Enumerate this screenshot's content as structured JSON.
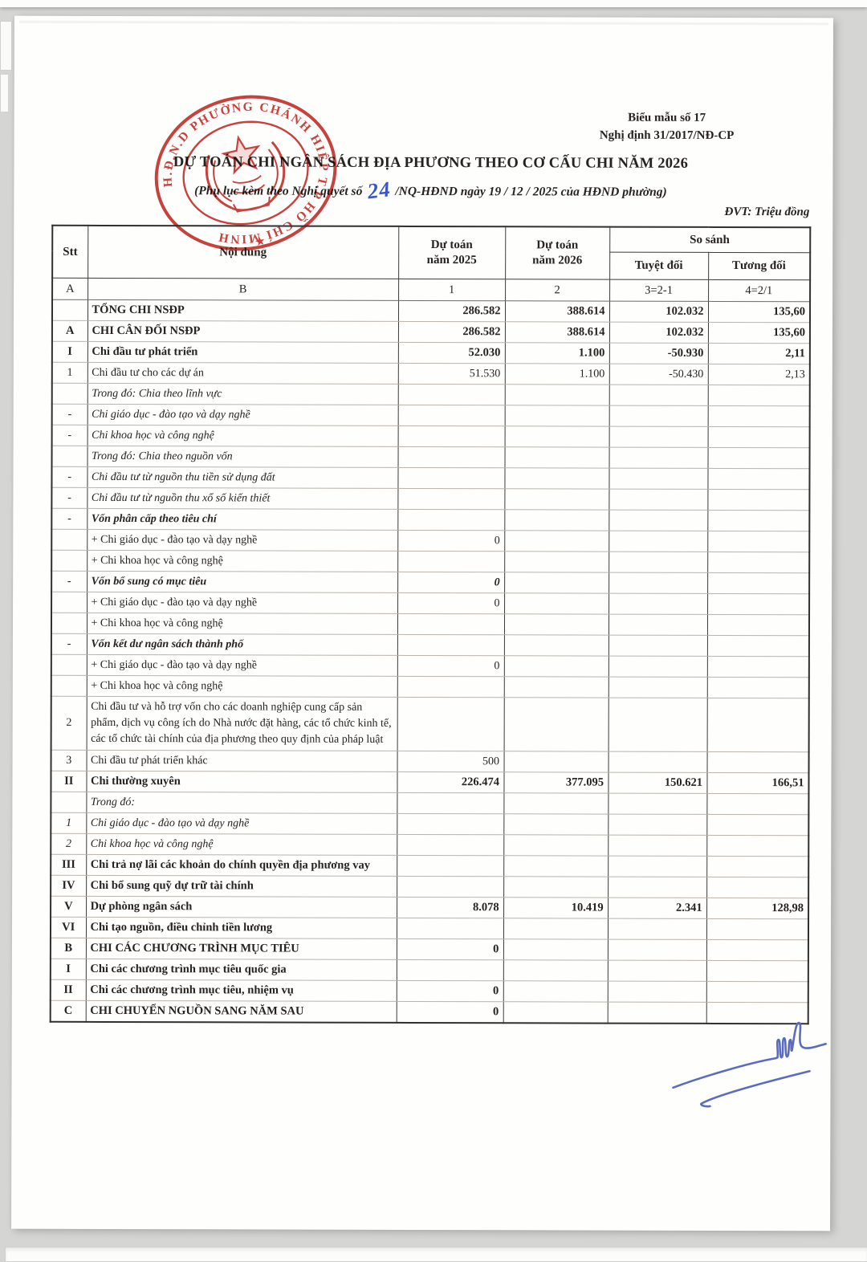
{
  "page": {
    "form_label": "Biểu mẫu số 17",
    "decree": "Nghị định 31/2017/NĐ-CP",
    "title": "DỰ TOÁN CHI NGÂN SÁCH ĐỊA PHƯƠNG THEO CƠ CẤU CHI NĂM 2026",
    "subtitle_prefix": "(Phụ lục kèm theo Nghị quyết số",
    "subtitle_number": "24",
    "subtitle_suffix": "/NQ-HĐND ngày  19 / 12 / 2025 của HĐND phường)",
    "unit_note": "ĐVT: Triệu đồng"
  },
  "colors": {
    "stamp_red": "#c4322c",
    "signature_blue": "#5b6cc0",
    "handwritten_blue": "#3a56c8"
  },
  "stamp": {
    "circle_text": "H.Đ.N.D  PHƯỜNG CHÁNH HIỆP  T.P HỒ CHÍ MINH",
    "star": "★"
  },
  "table": {
    "header": {
      "stt": "Stt",
      "noi_dung": "Nội dung",
      "dt2025": "Dự toán\nnăm 2025",
      "dt2026": "Dự toán\nnăm 2026",
      "so_sanh": "So sánh",
      "tuyet_doi": "Tuyệt đối",
      "tuong_doi": "Tương đối"
    },
    "codes": [
      "A",
      "B",
      "1",
      "2",
      "3=2-1",
      "4=2/1"
    ],
    "rows": [
      {
        "stt": "",
        "label": "TỔNG CHI NSĐP",
        "v25": "286.582",
        "v26": "388.614",
        "diff": "102.032",
        "ratio": "135,60",
        "style": "bold",
        "indent": 0
      },
      {
        "stt": "A",
        "label": "CHI CÂN ĐỐI NSĐP",
        "v25": "286.582",
        "v26": "388.614",
        "diff": "102.032",
        "ratio": "135,60",
        "style": "bold",
        "indent": 0
      },
      {
        "stt": "I",
        "label": "Chi đầu tư phát triển",
        "v25": "52.030",
        "v26": "1.100",
        "diff": "-50.930",
        "ratio": "2,11",
        "style": "bold",
        "indent": 0
      },
      {
        "stt": "1",
        "label": "Chi đầu tư cho các dự án",
        "v25": "51.530",
        "v26": "1.100",
        "diff": "-50.430",
        "ratio": "2,13",
        "style": "plain",
        "indent": 0
      },
      {
        "stt": "",
        "label": "Trong đó: Chia theo lĩnh vực",
        "v25": "",
        "v26": "",
        "diff": "",
        "ratio": "",
        "style": "italic",
        "indent": 0
      },
      {
        "stt": "-",
        "label": "Chi giáo dục - đào tạo và dạy nghề",
        "v25": "",
        "v26": "",
        "diff": "",
        "ratio": "",
        "style": "italic",
        "indent": 1
      },
      {
        "stt": "-",
        "label": "Chi khoa học và công nghệ",
        "v25": "",
        "v26": "",
        "diff": "",
        "ratio": "",
        "style": "italic",
        "indent": 1
      },
      {
        "stt": "",
        "label": "Trong đó: Chia theo nguồn vốn",
        "v25": "",
        "v26": "",
        "diff": "",
        "ratio": "",
        "style": "italic",
        "indent": 0
      },
      {
        "stt": "-",
        "label": "Chi đầu tư từ nguồn thu tiền sử dụng đất",
        "v25": "",
        "v26": "",
        "diff": "",
        "ratio": "",
        "style": "italic",
        "indent": 1
      },
      {
        "stt": "-",
        "label": "Chi đầu tư từ nguồn thu xổ số kiến thiết",
        "v25": "",
        "v26": "",
        "diff": "",
        "ratio": "",
        "style": "italic",
        "indent": 1
      },
      {
        "stt": "-",
        "label": "Vốn phân cấp theo tiêu chí",
        "v25": "",
        "v26": "",
        "diff": "",
        "ratio": "",
        "style": "bolditalic",
        "indent": 0
      },
      {
        "stt": "",
        "label": "+ Chi giáo dục - đào tạo và dạy nghề",
        "v25": "0",
        "v26": "",
        "diff": "",
        "ratio": "",
        "style": "plain",
        "indent": 2
      },
      {
        "stt": "",
        "label": "+ Chi khoa học và công nghệ",
        "v25": "",
        "v26": "",
        "diff": "",
        "ratio": "",
        "style": "plain",
        "indent": 2
      },
      {
        "stt": "-",
        "label": "Vốn bổ sung có mục tiêu",
        "v25": "0",
        "v26": "",
        "diff": "",
        "ratio": "",
        "style": "bolditalic",
        "indent": 0
      },
      {
        "stt": "",
        "label": "+ Chi giáo dục - đào tạo và dạy nghề",
        "v25": "0",
        "v26": "",
        "diff": "",
        "ratio": "",
        "style": "plain",
        "indent": 2
      },
      {
        "stt": "",
        "label": "+ Chi khoa học và công nghệ",
        "v25": "",
        "v26": "",
        "diff": "",
        "ratio": "",
        "style": "plain",
        "indent": 2
      },
      {
        "stt": "-",
        "label": "Vốn kết dư ngân sách thành phố",
        "v25": "",
        "v26": "",
        "diff": "",
        "ratio": "",
        "style": "bolditalic",
        "indent": 0
      },
      {
        "stt": "",
        "label": "+ Chi giáo dục - đào tạo và dạy nghề",
        "v25": "0",
        "v26": "",
        "diff": "",
        "ratio": "",
        "style": "plain",
        "indent": 2
      },
      {
        "stt": "",
        "label": "+ Chi khoa học và công nghệ",
        "v25": "",
        "v26": "",
        "diff": "",
        "ratio": "",
        "style": "plain",
        "indent": 2
      },
      {
        "stt": "2",
        "label": "Chi đầu tư và hỗ trợ vốn cho các doanh nghiệp cung cấp sản phẩm, dịch vụ công ích do Nhà nước đặt hàng, các tổ chức kinh tế, các tổ chức tài chính của địa phương theo quy định của pháp luật",
        "v25": "",
        "v26": "",
        "diff": "",
        "ratio": "",
        "style": "plain",
        "indent": 0,
        "wrap": true
      },
      {
        "stt": "3",
        "label": "Chi đầu tư phát triển khác",
        "v25": "500",
        "v26": "",
        "diff": "",
        "ratio": "",
        "style": "plain",
        "indent": 0
      },
      {
        "stt": "II",
        "label": "Chi thường xuyên",
        "v25": "226.474",
        "v26": "377.095",
        "diff": "150.621",
        "ratio": "166,51",
        "style": "bold",
        "indent": 0
      },
      {
        "stt": "",
        "label": "Trong đó:",
        "v25": "",
        "v26": "",
        "diff": "",
        "ratio": "",
        "style": "italic",
        "indent": 0
      },
      {
        "stt": "1",
        "label": "Chi giáo dục - đào tạo và dạy nghề",
        "v25": "",
        "v26": "",
        "diff": "",
        "ratio": "",
        "style": "italic",
        "indent": 1
      },
      {
        "stt": "2",
        "label": "Chi khoa học và công nghệ",
        "v25": "",
        "v26": "",
        "diff": "",
        "ratio": "",
        "style": "italic",
        "indent": 1
      },
      {
        "stt": "III",
        "label": "Chi trả nợ lãi các khoản do chính quyền địa phương vay",
        "v25": "",
        "v26": "",
        "diff": "",
        "ratio": "",
        "style": "bold",
        "indent": 0
      },
      {
        "stt": "IV",
        "label": "Chi bổ sung quỹ dự trữ tài chính",
        "v25": "",
        "v26": "",
        "diff": "",
        "ratio": "",
        "style": "bold",
        "indent": 0
      },
      {
        "stt": "V",
        "label": "Dự phòng ngân sách",
        "v25": "8.078",
        "v26": "10.419",
        "diff": "2.341",
        "ratio": "128,98",
        "style": "bold",
        "indent": 0
      },
      {
        "stt": "VI",
        "label": "Chi tạo nguồn, điều chỉnh tiền lương",
        "v25": "",
        "v26": "",
        "diff": "",
        "ratio": "",
        "style": "bold",
        "indent": 0
      },
      {
        "stt": "B",
        "label": "CHI CÁC CHƯƠNG TRÌNH MỤC TIÊU",
        "v25": "0",
        "v26": "",
        "diff": "",
        "ratio": "",
        "style": "bold",
        "indent": 0
      },
      {
        "stt": "I",
        "label": "Chi các chương trình mục tiêu quốc gia",
        "v25": "",
        "v26": "",
        "diff": "",
        "ratio": "",
        "style": "bold",
        "indent": 0
      },
      {
        "stt": "II",
        "label": "Chi các chương trình mục tiêu, nhiệm vụ",
        "v25": "0",
        "v26": "",
        "diff": "",
        "ratio": "",
        "style": "bold",
        "indent": 0
      },
      {
        "stt": "C",
        "label": "CHI CHUYỂN NGUỒN SANG NĂM SAU",
        "v25": "0",
        "v26": "",
        "diff": "",
        "ratio": "",
        "style": "bold",
        "indent": 0
      }
    ]
  }
}
